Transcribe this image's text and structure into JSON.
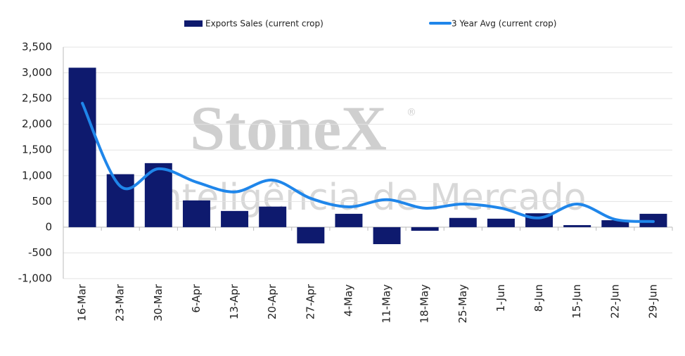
{
  "chart_data": {
    "type": "bar_line",
    "watermark": {
      "brand": "StoneX",
      "mark": "®",
      "tagline": "Inteligência de Mercado"
    },
    "categories": [
      "16-Mar",
      "23-Mar",
      "30-Mar",
      "6-Apr",
      "13-Apr",
      "20-Apr",
      "27-Apr",
      "4-May",
      "11-May",
      "18-May",
      "25-May",
      "1-Jun",
      "8-Jun",
      "15-Jun",
      "22-Jun",
      "29-Jun"
    ],
    "series": [
      {
        "name": "Exports Sales (current crop)",
        "type": "bar",
        "color": "#0e1a6e",
        "values": [
          3100,
          1030,
          1245,
          520,
          315,
          400,
          -315,
          260,
          -330,
          -70,
          180,
          165,
          270,
          40,
          135,
          260
        ]
      },
      {
        "name": "3 Year Avg (current crop)",
        "type": "line",
        "color": "#1f86ea",
        "values": [
          2410,
          795,
          1135,
          875,
          685,
          915,
          560,
          395,
          535,
          370,
          450,
          370,
          180,
          450,
          150,
          110
        ]
      }
    ],
    "ylim": [
      -1000,
      3500
    ],
    "yticks": [
      {
        "value": -1000,
        "label": "-1,000"
      },
      -500,
      0,
      500,
      {
        "value": 1000,
        "label": "1,000"
      },
      {
        "value": 1500,
        "label": "1,500"
      },
      {
        "value": 2000,
        "label": "2,000"
      },
      {
        "value": 2500,
        "label": "2,500"
      },
      {
        "value": 3000,
        "label": "3,000"
      },
      {
        "value": 3500,
        "label": "3,500"
      }
    ],
    "grid": true
  }
}
